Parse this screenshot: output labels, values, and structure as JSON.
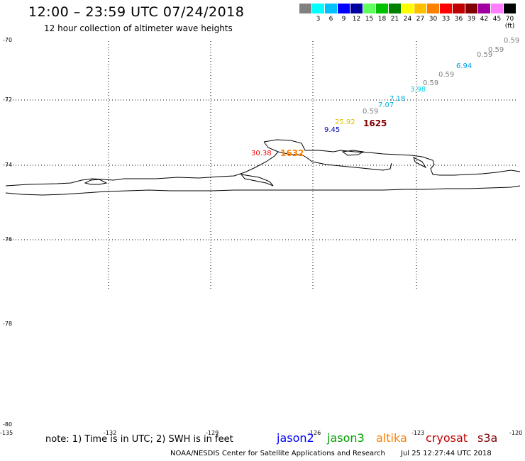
{
  "header": {
    "title": "12:00 – 23:59 UTC 07/24/2018",
    "subtitle": "12 hour collection of altimeter wave heights"
  },
  "legend": {
    "swatches": [
      {
        "color": "#808080",
        "label": ""
      },
      {
        "color": "#00ffff",
        "label": "3"
      },
      {
        "color": "#00c0ff",
        "label": "6"
      },
      {
        "color": "#0000ff",
        "label": "9"
      },
      {
        "color": "#0000a0",
        "label": "12"
      },
      {
        "color": "#60ff60",
        "label": "15"
      },
      {
        "color": "#00c000",
        "label": "18"
      },
      {
        "color": "#008000",
        "label": "21"
      },
      {
        "color": "#ffff00",
        "label": "24"
      },
      {
        "color": "#ffc000",
        "label": "27"
      },
      {
        "color": "#ff8000",
        "label": "30"
      },
      {
        "color": "#ff0000",
        "label": "33"
      },
      {
        "color": "#c00000",
        "label": "36"
      },
      {
        "color": "#800000",
        "label": "39"
      },
      {
        "color": "#a000a0",
        "label": "42"
      },
      {
        "color": "#ff80ff",
        "label": "45"
      },
      {
        "color": "#000000",
        "label": "70 (ft)"
      }
    ]
  },
  "axes": {
    "lat_labels": [
      "-70",
      "-72",
      "-74",
      "-76",
      "-78",
      "-80"
    ],
    "lon_labels": [
      "-135",
      "-132",
      "-129",
      "-126",
      "-123",
      "-120"
    ]
  },
  "observations": [
    {
      "text": "0.59",
      "color": "#808080"
    },
    {
      "text": "0.59",
      "color": "#808080"
    },
    {
      "text": "0.59",
      "color": "#808080"
    },
    {
      "text": "6.94",
      "color": "#00a0e0"
    },
    {
      "text": "0.59",
      "color": "#808080"
    },
    {
      "text": "0.59",
      "color": "#808080"
    },
    {
      "text": "3.98",
      "color": "#00d0e0"
    },
    {
      "text": "7.18",
      "color": "#00b0e0"
    },
    {
      "text": "7.07",
      "color": "#00b0e0"
    },
    {
      "text": "0.59",
      "color": "#808080"
    },
    {
      "text": "25.92",
      "color": "#e0c000"
    },
    {
      "text": "9.45",
      "color": "#0000c0"
    },
    {
      "text": "30.38",
      "color": "#ff0000"
    }
  ],
  "tracks": [
    {
      "text": "1625",
      "color": "#800000"
    },
    {
      "text": "1632",
      "color": "#ff8000"
    }
  ],
  "footer": {
    "note": "note: 1) Time is in UTC; 2) SWH is in feet",
    "satellites": [
      {
        "name": "jason2",
        "color": "#0000ff"
      },
      {
        "name": "jason3",
        "color": "#00a000"
      },
      {
        "name": "altika",
        "color": "#ff8000"
      },
      {
        "name": "cryosat",
        "color": "#c00000"
      },
      {
        "name": "s3a",
        "color": "#800000"
      }
    ],
    "credit": "NOAA/NESDIS Center for Satellite Applications and Research",
    "timestamp": "Jul 25 12:27:44 UTC 2018"
  }
}
